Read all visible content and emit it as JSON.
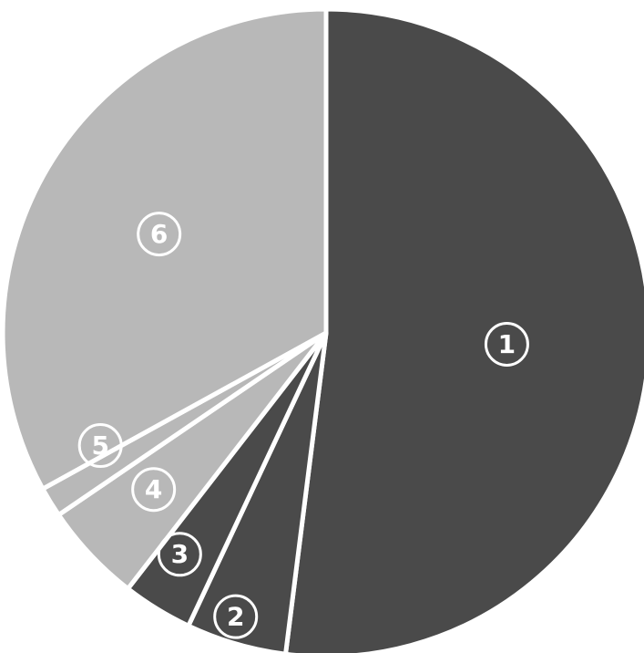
{
  "chart_data": {
    "type": "pie",
    "start_angle_deg": 0,
    "direction": "clockwise",
    "legend": "none",
    "slices": [
      {
        "label": "1",
        "value": 52.0,
        "color": "#4a4a4a"
      },
      {
        "label": "2",
        "value": 5.0,
        "color": "#4a4a4a"
      },
      {
        "label": "3",
        "value": 3.5,
        "color": "#4a4a4a"
      },
      {
        "label": "4",
        "value": 5.0,
        "color": "#b8b8b8"
      },
      {
        "label": "5",
        "value": 1.5,
        "color": "#b8b8b8"
      },
      {
        "label": "6",
        "value": 33.0,
        "color": "#b8b8b8"
      }
    ]
  }
}
